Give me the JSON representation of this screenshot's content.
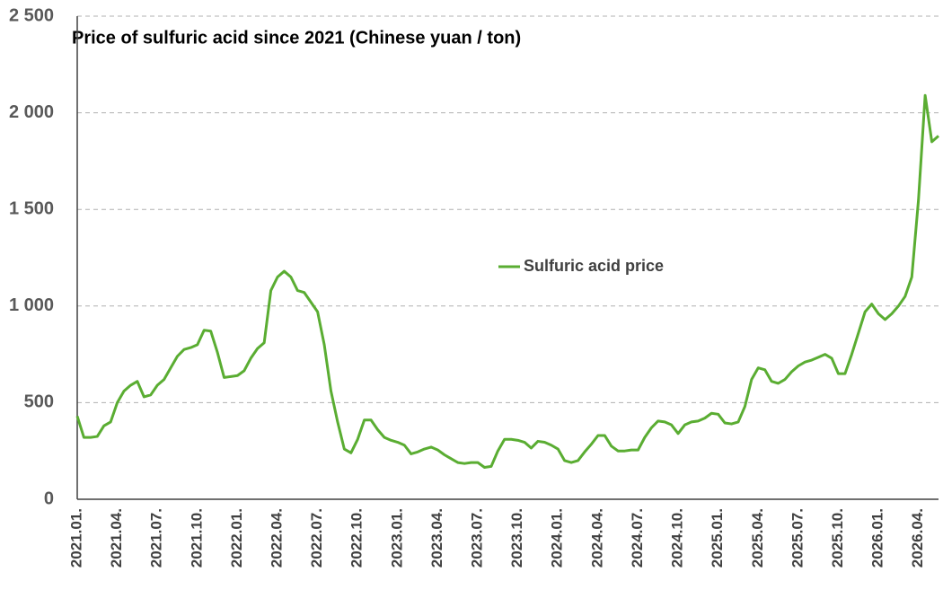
{
  "chart_data": {
    "type": "line",
    "title": "Price of sulfuric acid since 2021 (Chinese yuan / ton)",
    "categories": [
      "2021.01.",
      null,
      null,
      null,
      null,
      null,
      "2021.04.",
      null,
      null,
      null,
      null,
      null,
      "2021.07.",
      null,
      null,
      null,
      null,
      null,
      "2021.10.",
      null,
      null,
      null,
      null,
      null,
      "2022.01.",
      null,
      null,
      null,
      null,
      null,
      "2022.04.",
      null,
      null,
      null,
      null,
      null,
      "2022.07.",
      null,
      null,
      null,
      null,
      null,
      "2022.10.",
      null,
      null,
      null,
      null,
      null,
      "2023.01.",
      null,
      null,
      null,
      null,
      null,
      "2023.04.",
      null,
      null,
      null,
      null,
      null,
      "2023.07.",
      null,
      null,
      null,
      null,
      null,
      "2023.10.",
      null,
      null,
      null,
      null,
      null,
      "2024.01.",
      null,
      null,
      null,
      null,
      null,
      "2024.04.",
      null,
      null,
      null,
      null,
      null,
      "2024.07.",
      null,
      null,
      null,
      null,
      null,
      "2024.10.",
      null,
      null,
      null,
      null,
      null,
      "2025.01.",
      null,
      null,
      null,
      null,
      null,
      "2025.04.",
      null,
      null,
      null,
      null,
      null,
      "2025.07.",
      null,
      null,
      null,
      null,
      null,
      "2025.10.",
      null,
      null,
      null,
      null,
      null,
      "2026.01.",
      null,
      null,
      null,
      null,
      null,
      "2026.04.",
      null,
      null,
      null
    ],
    "series": [
      {
        "name": "Sulfuric acid price",
        "color": "#5aad32",
        "values": [
          430,
          320,
          320,
          325,
          380,
          400,
          500,
          560,
          590,
          610,
          530,
          540,
          590,
          620,
          680,
          740,
          775,
          785,
          800,
          875,
          870,
          760,
          630,
          635,
          640,
          665,
          730,
          780,
          810,
          1080,
          1150,
          1180,
          1150,
          1080,
          1070,
          1020,
          970,
          800,
          560,
          400,
          260,
          240,
          310,
          410,
          410,
          360,
          320,
          305,
          295,
          280,
          235,
          245,
          260,
          270,
          255,
          230,
          210,
          190,
          185,
          190,
          190,
          165,
          170,
          250,
          310,
          310,
          305,
          295,
          265,
          300,
          295,
          280,
          260,
          200,
          190,
          200,
          245,
          285,
          330,
          330,
          275,
          250,
          250,
          255,
          255,
          320,
          370,
          405,
          400,
          385,
          340,
          385,
          400,
          405,
          420,
          445,
          440,
          395,
          390,
          400,
          480,
          620,
          680,
          670,
          610,
          600,
          620,
          660,
          690,
          710,
          720,
          735,
          750,
          730,
          650,
          650,
          750,
          860,
          970,
          1010,
          960,
          930,
          960,
          1000,
          1050,
          1150,
          1550,
          2090,
          1850,
          1880
        ]
      }
    ],
    "ylim": [
      0,
      2500
    ],
    "yticks": [
      0,
      500,
      {
        "value": 1000,
        "label": "1 000"
      },
      {
        "value": 1500,
        "label": "1 500"
      },
      {
        "value": 2000,
        "label": "2 000"
      },
      {
        "value": 2500,
        "label": "2 500"
      }
    ],
    "grid": true,
    "legend": "center"
  }
}
